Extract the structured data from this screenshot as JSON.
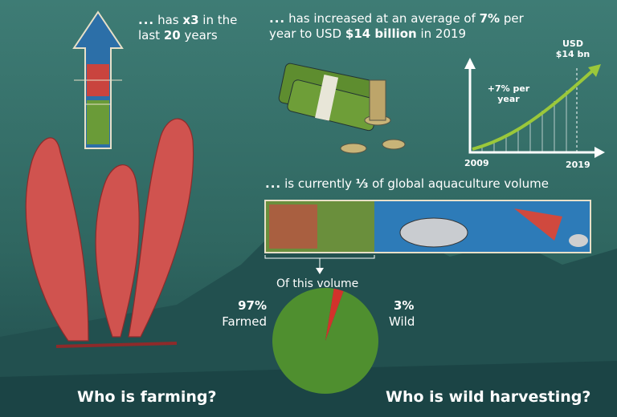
{
  "growth": {
    "dots": "...",
    "parts": [
      "has ",
      "x3",
      " in the last ",
      "20",
      " years"
    ]
  },
  "value": {
    "dots": "...",
    "parts": [
      "has increased at an average of ",
      "7%",
      " per year to USD ",
      "$14 billion",
      " in 2019"
    ]
  },
  "trend": {
    "end_label": "USD $14 bn",
    "rate_label": "+7% per year",
    "start_year": "2009",
    "end_year": "2019"
  },
  "share": {
    "dots": "...",
    "parts": [
      "is currently ",
      "⅓",
      " of global aquaculture volume"
    ],
    "caption": "Of this volume"
  },
  "pie": {
    "slices": [
      {
        "name": "Farmed",
        "value": 97,
        "value_label": "97%",
        "color": "#4f8f2f"
      },
      {
        "name": "Wild",
        "value": 3,
        "value_label": "3%",
        "color": "#d3322b"
      }
    ]
  },
  "footer": {
    "left": "Who is farming?",
    "right": "Who is wild harvesting?"
  }
}
